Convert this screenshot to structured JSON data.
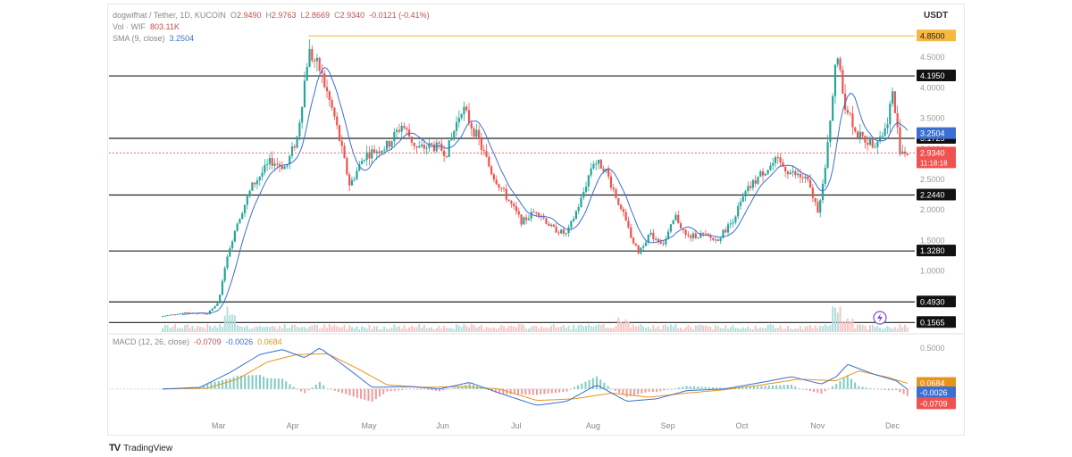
{
  "header": {
    "title": "dogwifhat / Tether, 1D, KUCOIN",
    "open_label": "O",
    "open": "2.9490",
    "high_label": "H",
    "high": "2.9763",
    "low_label": "L",
    "low": "2.8669",
    "close_label": "C",
    "close": "2.9340",
    "change": "-0.0121 (-0.41%)",
    "vol_label": "Vol · WIF",
    "vol_value": "803.11K",
    "sma_label": "SMA (9, close)",
    "sma_value": "3.2504",
    "currency": "USDT"
  },
  "macd_legend": {
    "label": "MACD (12, 26, close)",
    "hist": "-0.0709",
    "macd": "-0.0026",
    "signal": "0.0684"
  },
  "brand": {
    "name": "TradingView",
    "logo_text": "TV"
  },
  "colors": {
    "up": "#26a69a",
    "down": "#ef5350",
    "sma": "#3b6fd1",
    "level_line": "#222222",
    "top_level_line": "#e0b84a",
    "macd_line": "#3b6fd1",
    "signal_line": "#e8931c",
    "price_tag": "#ef5350",
    "sma_tag": "#3b6fd1",
    "signal_tag": "#e8931c"
  },
  "chart_data": [
    {
      "type": "candlestick",
      "title": "dogwifhat / Tether, 1D, KUCOIN",
      "x_labels": [
        "Mar",
        "Apr",
        "May",
        "Jun",
        "Jul",
        "Aug",
        "Sep",
        "Oct",
        "Nov",
        "Dec"
      ],
      "y_ticks": [
        1.0,
        1.5,
        2.0,
        2.5,
        3.0,
        3.5,
        4.0,
        4.5
      ],
      "y_tick_labels": [
        "1.0000",
        "1.5000",
        "2.0000",
        "2.5000",
        "3.0000",
        "3.5000",
        "4.0000",
        "4.5000"
      ],
      "ylim": [
        0.0,
        5.0
      ],
      "horizontal_levels": [
        {
          "value": 4.85,
          "label": "4.8500",
          "style": "highlight"
        },
        {
          "value": 4.195,
          "label": "4.1950",
          "style": "dark"
        },
        {
          "value": 3.1725,
          "label": "3.1725",
          "style": "dark"
        },
        {
          "value": 2.244,
          "label": "2.2440",
          "style": "dark"
        },
        {
          "value": 1.328,
          "label": "1.3280",
          "style": "dark"
        },
        {
          "value": 0.493,
          "label": "0.4930",
          "style": "dark"
        },
        {
          "value": 0.1565,
          "label": "0.1565",
          "style": "dark"
        }
      ],
      "last_price": {
        "value": 2.934,
        "label": "2.9340",
        "countdown": "11:18:18"
      },
      "sma_last": {
        "value": 3.2504,
        "label": "3.2504"
      },
      "price_path": [
        {
          "m": 0.0,
          "v": 0.26
        },
        {
          "m": 0.3,
          "v": 0.32
        },
        {
          "m": 0.6,
          "v": 0.3
        },
        {
          "m": 0.75,
          "v": 0.5
        },
        {
          "m": 0.85,
          "v": 1.2
        },
        {
          "m": 1.0,
          "v": 1.8
        },
        {
          "m": 1.2,
          "v": 2.4
        },
        {
          "m": 1.45,
          "v": 2.8
        },
        {
          "m": 1.65,
          "v": 2.7
        },
        {
          "m": 1.8,
          "v": 3.2
        },
        {
          "m": 1.95,
          "v": 4.6
        },
        {
          "m": 2.1,
          "v": 4.3
        },
        {
          "m": 2.3,
          "v": 3.5
        },
        {
          "m": 2.5,
          "v": 2.4
        },
        {
          "m": 2.7,
          "v": 2.9
        },
        {
          "m": 3.0,
          "v": 3.05
        },
        {
          "m": 3.2,
          "v": 3.4
        },
        {
          "m": 3.4,
          "v": 3.0
        },
        {
          "m": 3.6,
          "v": 3.05
        },
        {
          "m": 3.8,
          "v": 2.95
        },
        {
          "m": 4.0,
          "v": 3.7
        },
        {
          "m": 4.2,
          "v": 3.2
        },
        {
          "m": 4.4,
          "v": 2.6
        },
        {
          "m": 4.6,
          "v": 2.2
        },
        {
          "m": 4.8,
          "v": 1.8
        },
        {
          "m": 5.0,
          "v": 2.0
        },
        {
          "m": 5.2,
          "v": 1.7
        },
        {
          "m": 5.4,
          "v": 1.6
        },
        {
          "m": 5.6,
          "v": 2.2
        },
        {
          "m": 5.75,
          "v": 2.8
        },
        {
          "m": 5.9,
          "v": 2.7
        },
        {
          "m": 6.1,
          "v": 2.1
        },
        {
          "m": 6.25,
          "v": 1.6
        },
        {
          "m": 6.35,
          "v": 1.3
        },
        {
          "m": 6.5,
          "v": 1.6
        },
        {
          "m": 6.7,
          "v": 1.45
        },
        {
          "m": 6.85,
          "v": 1.9
        },
        {
          "m": 7.0,
          "v": 1.55
        },
        {
          "m": 7.2,
          "v": 1.6
        },
        {
          "m": 7.4,
          "v": 1.5
        },
        {
          "m": 7.6,
          "v": 1.8
        },
        {
          "m": 7.8,
          "v": 2.3
        },
        {
          "m": 8.0,
          "v": 2.6
        },
        {
          "m": 8.2,
          "v": 2.8
        },
        {
          "m": 8.4,
          "v": 2.6
        },
        {
          "m": 8.6,
          "v": 2.5
        },
        {
          "m": 8.75,
          "v": 2.0
        },
        {
          "m": 8.85,
          "v": 2.6
        },
        {
          "m": 9.0,
          "v": 4.6
        },
        {
          "m": 9.1,
          "v": 3.8
        },
        {
          "m": 9.3,
          "v": 3.2
        },
        {
          "m": 9.5,
          "v": 3.1
        },
        {
          "m": 9.65,
          "v": 3.3
        },
        {
          "m": 9.75,
          "v": 3.9
        },
        {
          "m": 9.85,
          "v": 3.0
        },
        {
          "m": 9.95,
          "v": 2.93
        }
      ]
    },
    {
      "type": "volume",
      "label": "Vol · WIF",
      "last_value": "803.11K",
      "spikes": [
        {
          "m": 0.9,
          "v": 1.0
        },
        {
          "m": 6.15,
          "v": 0.55
        },
        {
          "m": 9.0,
          "v": 1.0
        },
        {
          "m": 9.15,
          "v": 0.6
        }
      ]
    },
    {
      "type": "line",
      "title": "MACD (12, 26, close)",
      "y_ticks": [
        0.5,
        0.0
      ],
      "y_tick_labels": [
        "0.5000",
        "0.0000"
      ],
      "ylim": [
        -0.35,
        0.65
      ],
      "series": [
        {
          "name": "MACD",
          "points": [
            {
              "m": 0.0,
              "v": 0.0
            },
            {
              "m": 0.5,
              "v": 0.02
            },
            {
              "m": 0.9,
              "v": 0.2
            },
            {
              "m": 1.3,
              "v": 0.42
            },
            {
              "m": 1.6,
              "v": 0.48
            },
            {
              "m": 1.9,
              "v": 0.38
            },
            {
              "m": 2.1,
              "v": 0.5
            },
            {
              "m": 2.4,
              "v": 0.3
            },
            {
              "m": 2.8,
              "v": 0.02
            },
            {
              "m": 3.3,
              "v": 0.03
            },
            {
              "m": 3.7,
              "v": 0.0
            },
            {
              "m": 4.1,
              "v": 0.08
            },
            {
              "m": 4.5,
              "v": -0.05
            },
            {
              "m": 5.0,
              "v": -0.2
            },
            {
              "m": 5.4,
              "v": -0.15
            },
            {
              "m": 5.8,
              "v": 0.05
            },
            {
              "m": 6.2,
              "v": -0.15
            },
            {
              "m": 6.6,
              "v": -0.12
            },
            {
              "m": 7.0,
              "v": -0.02
            },
            {
              "m": 7.5,
              "v": 0.0
            },
            {
              "m": 8.0,
              "v": 0.08
            },
            {
              "m": 8.4,
              "v": 0.15
            },
            {
              "m": 8.8,
              "v": 0.06
            },
            {
              "m": 9.0,
              "v": 0.15
            },
            {
              "m": 9.15,
              "v": 0.3
            },
            {
              "m": 9.5,
              "v": 0.18
            },
            {
              "m": 9.8,
              "v": 0.1
            },
            {
              "m": 9.95,
              "v": -0.0026
            }
          ]
        },
        {
          "name": "Signal",
          "points": [
            {
              "m": 0.0,
              "v": 0.0
            },
            {
              "m": 0.6,
              "v": 0.01
            },
            {
              "m": 1.0,
              "v": 0.12
            },
            {
              "m": 1.4,
              "v": 0.33
            },
            {
              "m": 1.8,
              "v": 0.42
            },
            {
              "m": 2.2,
              "v": 0.43
            },
            {
              "m": 2.6,
              "v": 0.25
            },
            {
              "m": 3.0,
              "v": 0.05
            },
            {
              "m": 3.5,
              "v": 0.02
            },
            {
              "m": 4.0,
              "v": 0.03
            },
            {
              "m": 4.5,
              "v": 0.0
            },
            {
              "m": 5.0,
              "v": -0.14
            },
            {
              "m": 5.5,
              "v": -0.12
            },
            {
              "m": 6.0,
              "v": -0.05
            },
            {
              "m": 6.5,
              "v": -0.1
            },
            {
              "m": 7.0,
              "v": -0.05
            },
            {
              "m": 7.5,
              "v": -0.01
            },
            {
              "m": 8.0,
              "v": 0.05
            },
            {
              "m": 8.5,
              "v": 0.12
            },
            {
              "m": 9.0,
              "v": 0.1
            },
            {
              "m": 9.3,
              "v": 0.22
            },
            {
              "m": 9.7,
              "v": 0.14
            },
            {
              "m": 9.95,
              "v": 0.0684
            }
          ]
        }
      ],
      "histogram_last": -0.0709
    }
  ]
}
